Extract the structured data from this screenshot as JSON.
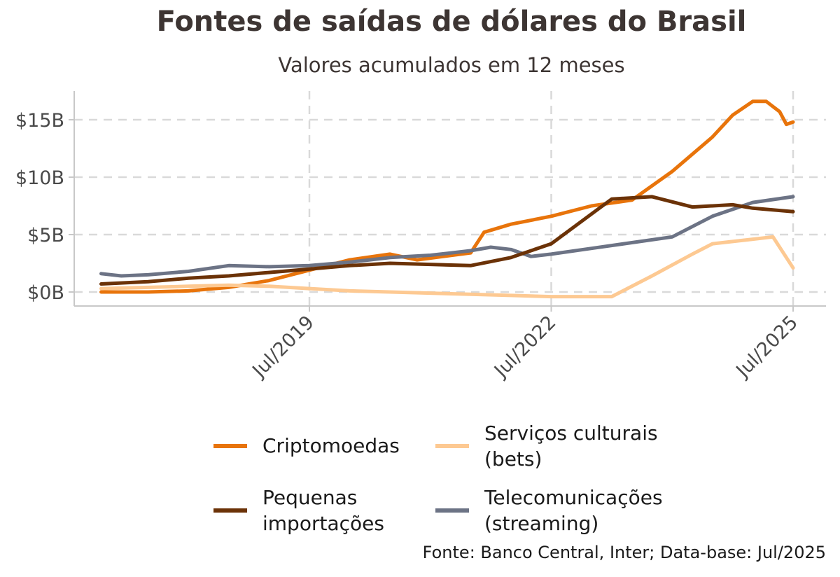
{
  "chart_data": {
    "type": "line",
    "title": "Fontes de saídas de dólares do Brasil",
    "subtitle": "Valores acumulados em 12 meses",
    "caption": "Fonte: Banco Central, Inter; Data-base: Jul/2025",
    "xlabel": "",
    "ylabel": "",
    "x_ticks": [
      "Jul/2019",
      "Jul/2022",
      "Jul/2025"
    ],
    "y_ticks": [
      "$0B",
      "$5B",
      "$10B",
      "$15B"
    ],
    "y_tick_values": [
      0,
      5,
      10,
      15
    ],
    "grid": true,
    "legend_position": "bottom",
    "x_start": "Dec/2016",
    "x_end": "Jul/2025",
    "ylim": [
      -1.2,
      17.5
    ],
    "series": [
      {
        "name": "Criptomoedas",
        "color": "#e8740b",
        "points": [
          [
            "Dec/2016",
            0.0
          ],
          [
            "Jul/2017",
            0.0
          ],
          [
            "Jan/2018",
            0.1
          ],
          [
            "Jul/2018",
            0.4
          ],
          [
            "Jan/2019",
            1.0
          ],
          [
            "Jul/2019",
            1.9
          ],
          [
            "Jan/2020",
            2.8
          ],
          [
            "Jul/2020",
            3.3
          ],
          [
            "Nov/2020",
            2.8
          ],
          [
            "Jul/2021",
            3.4
          ],
          [
            "Sep/2021",
            5.2
          ],
          [
            "Jan/2022",
            5.9
          ],
          [
            "Jul/2022",
            6.6
          ],
          [
            "Jan/2023",
            7.5
          ],
          [
            "Jul/2023",
            8.0
          ],
          [
            "Jan/2024",
            10.5
          ],
          [
            "Jul/2024",
            13.5
          ],
          [
            "Oct/2024",
            15.4
          ],
          [
            "Jan/2025",
            16.6
          ],
          [
            "Mar/2025",
            16.6
          ],
          [
            "May/2025",
            15.7
          ],
          [
            "Jun/2025",
            14.6
          ],
          [
            "Jul/2025",
            14.8
          ]
        ]
      },
      {
        "name": "Pequenas importações",
        "color": "#6b3207",
        "points": [
          [
            "Dec/2016",
            0.7
          ],
          [
            "Jul/2017",
            0.9
          ],
          [
            "Jan/2018",
            1.2
          ],
          [
            "Jul/2018",
            1.4
          ],
          [
            "Jan/2019",
            1.7
          ],
          [
            "Jul/2019",
            2.0
          ],
          [
            "Jan/2020",
            2.3
          ],
          [
            "Jul/2020",
            2.5
          ],
          [
            "Jan/2021",
            2.4
          ],
          [
            "Jul/2021",
            2.3
          ],
          [
            "Jan/2022",
            3.0
          ],
          [
            "Jul/2022",
            4.2
          ],
          [
            "Jan/2023",
            6.8
          ],
          [
            "Apr/2023",
            8.1
          ],
          [
            "Oct/2023",
            8.3
          ],
          [
            "Apr/2024",
            7.4
          ],
          [
            "Oct/2024",
            7.6
          ],
          [
            "Jan/2025",
            7.3
          ],
          [
            "Jul/2025",
            7.0
          ]
        ]
      },
      {
        "name": "Serviços culturais (bets)",
        "color": "#fdc992",
        "points": [
          [
            "Dec/2016",
            0.3
          ],
          [
            "Jul/2017",
            0.4
          ],
          [
            "Jan/2018",
            0.5
          ],
          [
            "Jul/2018",
            0.6
          ],
          [
            "Jan/2019",
            0.5
          ],
          [
            "Jul/2019",
            0.3
          ],
          [
            "Jan/2020",
            0.1
          ],
          [
            "Jul/2020",
            0.0
          ],
          [
            "Jan/2021",
            -0.1
          ],
          [
            "Jul/2021",
            -0.2
          ],
          [
            "Jan/2022",
            -0.3
          ],
          [
            "Jul/2022",
            -0.4
          ],
          [
            "Jan/2023",
            -0.4
          ],
          [
            "Apr/2023",
            -0.4
          ],
          [
            "Oct/2023",
            1.4
          ],
          [
            "Apr/2024",
            3.3
          ],
          [
            "Jul/2024",
            4.2
          ],
          [
            "Jan/2025",
            4.6
          ],
          [
            "Apr/2025",
            4.8
          ],
          [
            "Jul/2025",
            2.1
          ]
        ]
      },
      {
        "name": "Telecomunicações (streaming)",
        "color": "#6c7385",
        "points": [
          [
            "Dec/2016",
            1.6
          ],
          [
            "Mar/2017",
            1.4
          ],
          [
            "Jul/2017",
            1.5
          ],
          [
            "Jan/2018",
            1.8
          ],
          [
            "Jul/2018",
            2.3
          ],
          [
            "Jan/2019",
            2.2
          ],
          [
            "Jul/2019",
            2.3
          ],
          [
            "Jan/2020",
            2.6
          ],
          [
            "Jul/2020",
            3.0
          ],
          [
            "Jan/2021",
            3.2
          ],
          [
            "Jul/2021",
            3.6
          ],
          [
            "Oct/2021",
            3.9
          ],
          [
            "Jan/2022",
            3.7
          ],
          [
            "Apr/2022",
            3.1
          ],
          [
            "Jul/2022",
            3.3
          ],
          [
            "Jan/2023",
            3.8
          ],
          [
            "Jul/2023",
            4.3
          ],
          [
            "Jan/2024",
            4.8
          ],
          [
            "Jul/2024",
            6.6
          ],
          [
            "Jan/2025",
            7.8
          ],
          [
            "Jul/2025",
            8.3
          ]
        ]
      }
    ]
  }
}
